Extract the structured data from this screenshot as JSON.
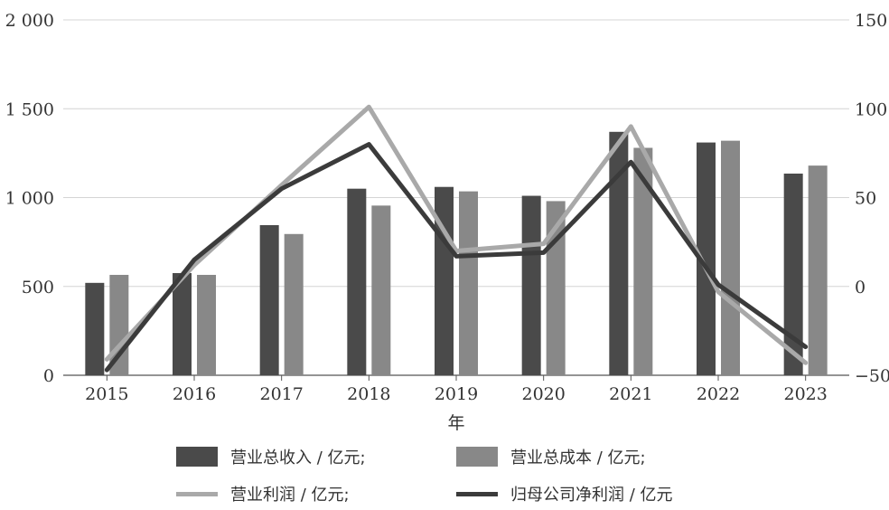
{
  "chart_data": {
    "type": "bar",
    "xlabel": "年",
    "categories": [
      "2015",
      "2016",
      "2017",
      "2018",
      "2019",
      "2020",
      "2021",
      "2022",
      "2023"
    ],
    "y_left": {
      "ticks": [
        "0",
        "500",
        "1 000",
        "1 500",
        "2 000"
      ],
      "ylim": [
        0,
        2000
      ]
    },
    "y_right": {
      "ticks": [
        "−50",
        "0",
        "50",
        "100",
        "150"
      ],
      "ylim": [
        -50,
        150
      ]
    },
    "grid": "horizontal",
    "legend_position": "bottom",
    "series": [
      {
        "name": "营业总收入 / 亿元;",
        "kind": "bar",
        "axis": "left",
        "color": "#4a4a4a",
        "values": [
          520,
          575,
          845,
          1050,
          1060,
          1010,
          1370,
          1310,
          1135
        ]
      },
      {
        "name": "营业总成本 / 亿元;",
        "kind": "bar",
        "axis": "left",
        "color": "#888888",
        "values": [
          565,
          565,
          795,
          955,
          1035,
          980,
          1280,
          1320,
          1180
        ]
      },
      {
        "name": "营业利润 / 亿元;",
        "kind": "line",
        "axis": "right",
        "color": "#a9a9a9",
        "values": [
          -41,
          12,
          57,
          101,
          20,
          24,
          90,
          -3,
          -43
        ]
      },
      {
        "name": "归母公司净利润 / 亿元",
        "kind": "line",
        "axis": "right",
        "color": "#3b3b3b",
        "values": [
          -47,
          15,
          55,
          80,
          17,
          19,
          70,
          1,
          -34
        ]
      }
    ]
  }
}
